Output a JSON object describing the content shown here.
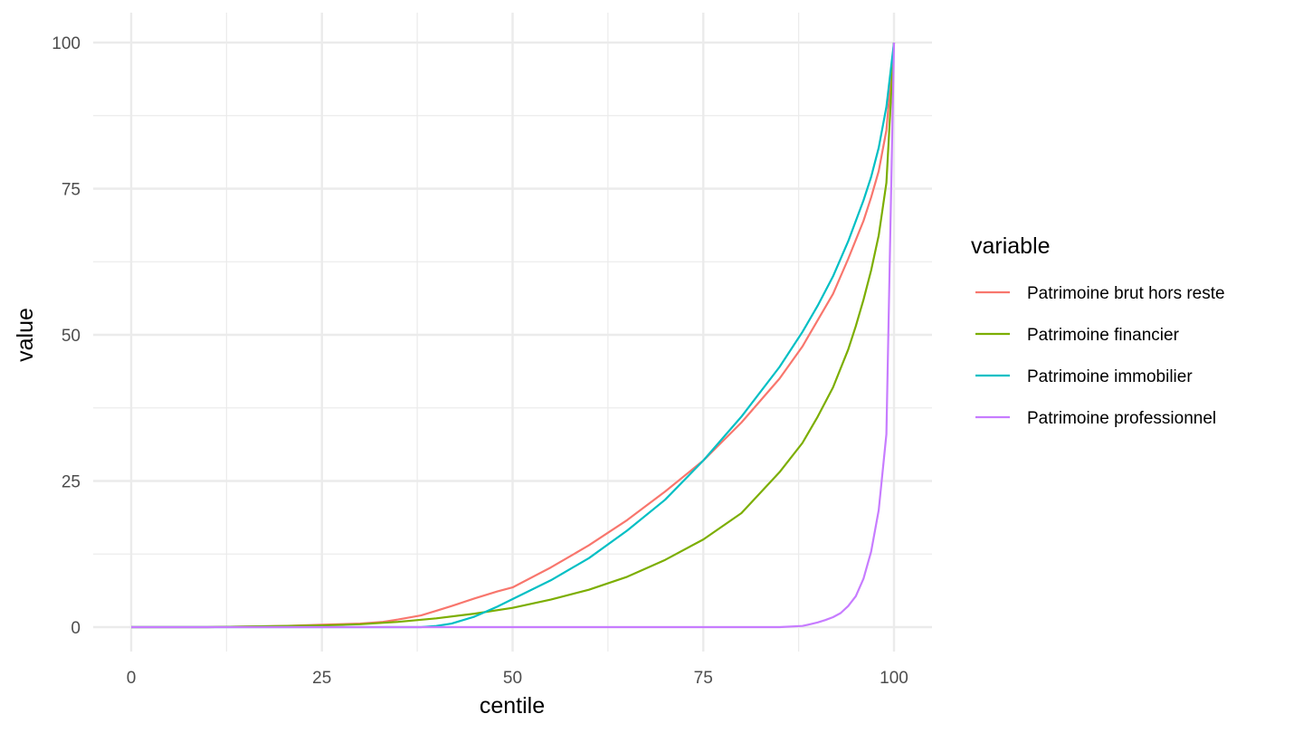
{
  "chart_data": {
    "type": "line",
    "xlabel": "centile",
    "ylabel": "value",
    "xlim": [
      0,
      100
    ],
    "ylim": [
      0,
      100
    ],
    "xticks": [
      "0",
      "25",
      "50",
      "75",
      "100"
    ],
    "yticks": [
      "0",
      "25",
      "50",
      "75",
      "100"
    ],
    "grid": true,
    "legend": {
      "title": "variable",
      "placement": "right"
    },
    "series": [
      {
        "name": "Patrimoine brut hors reste",
        "color": "#F8766D",
        "x": [
          0,
          10,
          20,
          25,
          30,
          33,
          35,
          38,
          40,
          42,
          45,
          48,
          50,
          55,
          60,
          65,
          70,
          75,
          80,
          85,
          88,
          90,
          92,
          94,
          96,
          97,
          98,
          99,
          100
        ],
        "y": [
          0,
          0,
          0.2,
          0.4,
          0.6,
          0.9,
          1.3,
          2.0,
          2.8,
          3.6,
          4.9,
          6.1,
          6.8,
          10.2,
          14.0,
          18.3,
          23.2,
          28.5,
          35.0,
          42.5,
          48.0,
          52.5,
          57.0,
          63.0,
          69.5,
          73.5,
          78.0,
          85.0,
          100
        ]
      },
      {
        "name": "Patrimoine financier",
        "color": "#7CAE00",
        "x": [
          0,
          10,
          20,
          25,
          30,
          35,
          40,
          45,
          50,
          55,
          60,
          65,
          70,
          75,
          80,
          85,
          88,
          90,
          92,
          94,
          95,
          96,
          97,
          98,
          99,
          100
        ],
        "y": [
          0,
          0,
          0.2,
          0.3,
          0.5,
          0.9,
          1.5,
          2.3,
          3.3,
          4.7,
          6.4,
          8.6,
          11.5,
          15.0,
          19.5,
          26.5,
          31.5,
          36.0,
          41.0,
          47.5,
          51.5,
          56.0,
          61.0,
          67.0,
          76.0,
          100
        ]
      },
      {
        "name": "Patrimoine immobilier",
        "color": "#00BFC4",
        "x": [
          0,
          38,
          40,
          42,
          45,
          48,
          50,
          55,
          60,
          65,
          70,
          75,
          80,
          85,
          88,
          90,
          92,
          94,
          96,
          97,
          98,
          99,
          100
        ],
        "y": [
          0,
          0,
          0.2,
          0.6,
          1.8,
          3.5,
          4.8,
          8.0,
          11.8,
          16.5,
          21.8,
          28.5,
          36.0,
          44.5,
          50.5,
          55.0,
          60.0,
          66.0,
          73.0,
          77.0,
          82.0,
          89.0,
          100
        ]
      },
      {
        "name": "Patrimoine professionnel",
        "color": "#C77CFF",
        "x": [
          0,
          10,
          20,
          30,
          40,
          50,
          60,
          70,
          80,
          85,
          88,
          89,
          90,
          91,
          92,
          93,
          94,
          95,
          96,
          97,
          98,
          99,
          100
        ],
        "y": [
          0,
          0,
          0,
          0,
          0,
          0,
          0,
          0,
          0,
          0,
          0.2,
          0.5,
          0.8,
          1.2,
          1.7,
          2.4,
          3.6,
          5.3,
          8.3,
          12.9,
          20.0,
          33.0,
          100
        ]
      }
    ]
  }
}
